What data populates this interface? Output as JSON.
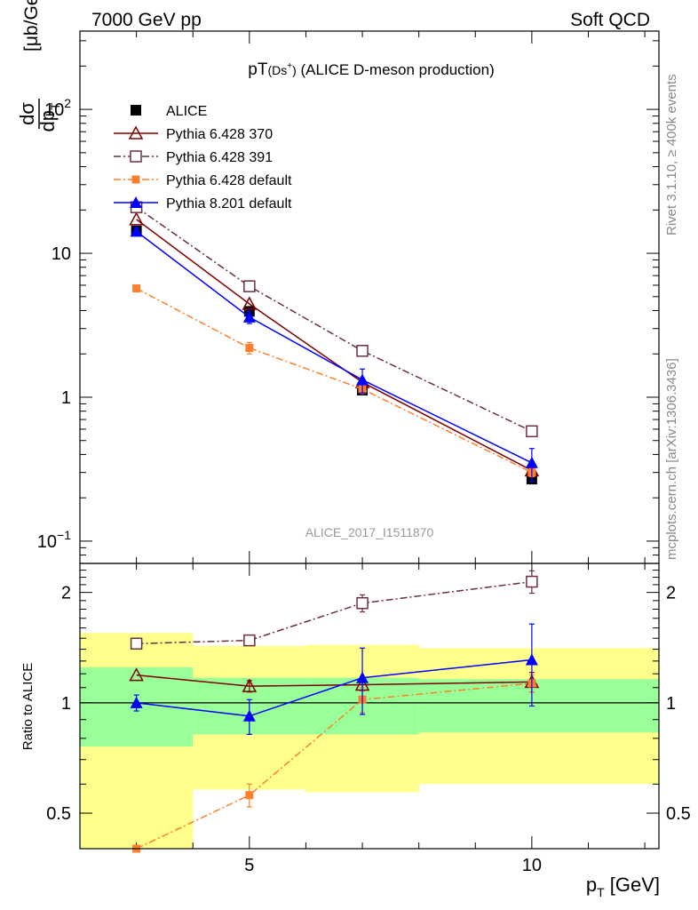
{
  "header": {
    "left": "7000 GeV pp",
    "right": "Soft QCD"
  },
  "side_text": {
    "rivet": "Rivet 3.1.10, ≥ 400k events",
    "source": "mcplots.cern.ch [arXiv:1306.3436]"
  },
  "chart_data": [
    {
      "type": "line",
      "title_main": "pT",
      "title_sub": "(Ds",
      "title_sup": "+",
      "title_close": ")",
      "title_rest": " (ALICE D-meson production)",
      "ylabel": "dσ/dp_T [μb/GeV]",
      "ylabel_num": "dσ",
      "ylabel_den": "dp",
      "ylabel_den_sub": "T",
      "ylabel_unit": "[μb/GeV]",
      "y_scale": "log",
      "ylim": [
        0.07,
        350
      ],
      "y_ticklabels": [
        {
          "v": 0.1,
          "base": "10",
          "exp": "−1"
        },
        {
          "v": 1,
          "base": "1",
          "exp": ""
        },
        {
          "v": 10,
          "base": "10",
          "exp": ""
        },
        {
          "v": 100,
          "base": "10",
          "exp": "2"
        }
      ],
      "xlim": [
        2,
        12.25
      ],
      "watermark": "ALICE_2017_I1511870",
      "legend_position": "top-left",
      "series": [
        {
          "name": "ALICE",
          "marker": "square-filled",
          "color": "#000000",
          "dash": "",
          "x": [
            3,
            5,
            7,
            10
          ],
          "y": [
            14.3,
            3.95,
            1.12,
            0.27
          ],
          "err": [
            0.6,
            0.25,
            0.07,
            0.02
          ],
          "line": false
        },
        {
          "name": "Pythia 6.428 370",
          "marker": "triangle-open",
          "color": "#7f0000",
          "dash": "",
          "x": [
            3,
            5,
            7,
            10
          ],
          "y": [
            17.2,
            4.45,
            1.27,
            0.31
          ],
          "err": [
            0,
            0,
            0,
            0
          ],
          "line": true
        },
        {
          "name": "Pythia 6.428 391",
          "marker": "square-open",
          "color": "#6a3040",
          "dash": "8 3 2 3",
          "x": [
            3,
            5,
            7,
            10
          ],
          "y": [
            20.9,
            5.9,
            2.1,
            0.58
          ],
          "err": [
            0,
            0,
            0,
            0.04
          ],
          "line": true
        },
        {
          "name": "Pythia 6.428 default",
          "marker": "square-small",
          "color": "#ff7f2a",
          "dash": "8 3 2 3",
          "x": [
            3,
            5,
            7,
            10
          ],
          "y": [
            5.7,
            2.2,
            1.14,
            0.3
          ],
          "err": [
            0,
            0.2,
            0.08,
            0.02
          ],
          "line": true
        },
        {
          "name": "Pythia 8.201 default",
          "marker": "triangle-filled",
          "color": "#0000ff",
          "dash": "",
          "x": [
            3,
            5,
            7,
            10
          ],
          "y": [
            14.2,
            3.6,
            1.32,
            0.35
          ],
          "err": [
            0.8,
            0.35,
            0.25,
            0.09
          ],
          "line": true
        }
      ]
    },
    {
      "type": "line",
      "ylabel": "Ratio to ALICE",
      "xlabel": "p_T [GeV]",
      "xlabel_main": "p",
      "xlabel_sub": "T",
      "xlabel_unit": " [GeV]",
      "y_scale": "log",
      "ylim": [
        0.4,
        2.4
      ],
      "y_ticklabels": [
        {
          "v": 0.5,
          "label": "0.5"
        },
        {
          "v": 1,
          "label": "1"
        },
        {
          "v": 2,
          "label": "2"
        }
      ],
      "xlim": [
        2,
        12.25
      ],
      "x_ticklabels": [
        {
          "v": 5,
          "label": "5"
        },
        {
          "v": 10,
          "label": "10"
        }
      ],
      "reference_line": 1,
      "bands": [
        {
          "x0": 2,
          "x1": 4,
          "inner": [
            0.76,
            1.25
          ],
          "outer": [
            0.4,
            1.55
          ]
        },
        {
          "x0": 4,
          "x1": 6,
          "inner": [
            0.82,
            1.17
          ],
          "outer": [
            0.58,
            1.43
          ]
        },
        {
          "x0": 6,
          "x1": 8,
          "inner": [
            0.82,
            1.17
          ],
          "outer": [
            0.57,
            1.44
          ]
        },
        {
          "x0": 8,
          "x1": 12.25,
          "inner": [
            0.83,
            1.16
          ],
          "outer": [
            0.6,
            1.41
          ]
        }
      ],
      "band_colors": {
        "outer": "#ffff8c",
        "inner": "#99ff99"
      },
      "series": [
        {
          "name": "Pythia 6.428 370",
          "marker": "triangle-open",
          "color": "#7f0000",
          "dash": "",
          "x": [
            3,
            5,
            7,
            10
          ],
          "y": [
            1.19,
            1.11,
            1.12,
            1.14
          ],
          "err": [
            0,
            0.04,
            0.04,
            0.07
          ]
        },
        {
          "name": "Pythia 6.428 391",
          "marker": "square-open",
          "color": "#6a3040",
          "dash": "8 3 2 3",
          "x": [
            3,
            5,
            7,
            10
          ],
          "y": [
            1.45,
            1.48,
            1.87,
            2.14
          ],
          "err": [
            0,
            0.03,
            0.1,
            0.15
          ]
        },
        {
          "name": "Pythia 6.428 default",
          "marker": "square-small",
          "color": "#ff7f2a",
          "dash": "8 3 2 3",
          "x": [
            3,
            5,
            7,
            10
          ],
          "y": [
            0.4,
            0.56,
            1.02,
            1.13
          ],
          "err": [
            0,
            0.04,
            0.08,
            0.06
          ]
        },
        {
          "name": "Pythia 8.201 default",
          "marker": "triangle-filled",
          "color": "#0000ff",
          "dash": "",
          "x": [
            3,
            5,
            7,
            10
          ],
          "y": [
            1.0,
            0.92,
            1.17,
            1.31
          ],
          "err": [
            0.05,
            0.1,
            0.24,
            0.33
          ]
        }
      ]
    }
  ]
}
